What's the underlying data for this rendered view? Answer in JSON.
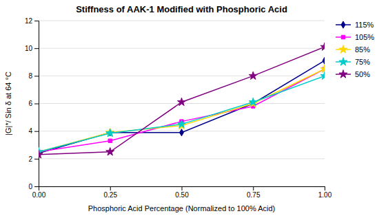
{
  "chart_data": {
    "type": "line",
    "title": "Stiffness of AAK-1 Modified with Phosphoric Acid",
    "xlabel": "Phosphoric Acid Percentage (Normalized to 100% Acid)",
    "ylabel": "|G|*/ Sin δ at 64 °C",
    "x": [
      0.0,
      0.25,
      0.5,
      0.75,
      1.0
    ],
    "xlim": [
      0.0,
      1.0
    ],
    "xticks": [
      {
        "value": 0.0,
        "label": "0.00"
      },
      {
        "value": 0.25,
        "label": "0.25"
      },
      {
        "value": 0.5,
        "label": "0.50"
      },
      {
        "value": 0.75,
        "label": "0.75"
      },
      {
        "value": 1.0,
        "label": "1.00"
      }
    ],
    "ylim": [
      0,
      12
    ],
    "yticks": [
      0,
      2,
      4,
      6,
      8,
      10,
      12
    ],
    "grid": true,
    "legend": "right",
    "series": [
      {
        "name": "115%",
        "color": "#00008B",
        "marker": "diamond",
        "values": [
          2.4,
          3.9,
          3.9,
          6.0,
          9.1
        ]
      },
      {
        "name": "105%",
        "color": "#FF00FF",
        "marker": "square",
        "values": [
          2.5,
          3.3,
          4.7,
          5.8,
          8.5
        ]
      },
      {
        "name": "85%",
        "color": "#FFD700",
        "marker": "star",
        "values": [
          2.5,
          3.9,
          4.4,
          6.0,
          8.5
        ]
      },
      {
        "name": "75%",
        "color": "#00CCCC",
        "marker": "star",
        "values": [
          2.5,
          3.85,
          4.5,
          6.1,
          8.0
        ]
      },
      {
        "name": "50%",
        "color": "#800080",
        "marker": "star",
        "values": [
          2.3,
          2.5,
          6.1,
          8.0,
          10.1
        ]
      }
    ]
  }
}
